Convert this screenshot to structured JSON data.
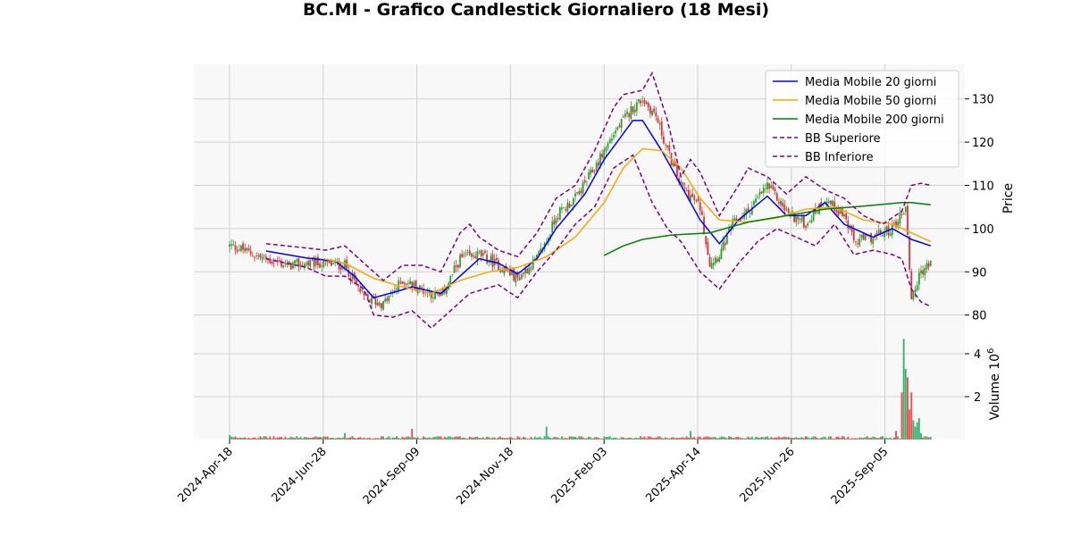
{
  "title": "BC.MI - Grafico Candlestick Giornaliero (18 Mesi)",
  "colors": {
    "up": "#2ca02c",
    "down": "#e0303a",
    "vol_up": "#3cb371",
    "vol_down": "#f05050",
    "ma20": "#0000ff",
    "ma50": "#ffa500",
    "ma200": "#008000",
    "bb": "#800080",
    "panel_bg": "#f8f8f8",
    "grid": "#d0d0d0"
  },
  "chart_data": {
    "type": "candlestick",
    "x_ticks": [
      "2024-Apr-18",
      "2024-Jun-28",
      "2024-Sep-09",
      "2024-Nov-18",
      "2025-Feb-03",
      "2025-Apr-14",
      "2025-Jun-26",
      "2025-Sep-05"
    ],
    "price_panel": {
      "ylabel": "Price",
      "yticks": [
        80,
        90,
        100,
        110,
        120,
        130
      ],
      "ylim": [
        76,
        138
      ],
      "close_anchors": [
        [
          0,
          96
        ],
        [
          5,
          95.5
        ],
        [
          15,
          93.5
        ],
        [
          30,
          91.5
        ],
        [
          45,
          92
        ],
        [
          60,
          91.5
        ],
        [
          70,
          84
        ],
        [
          80,
          82.5
        ],
        [
          90,
          88
        ],
        [
          100,
          86
        ],
        [
          110,
          84
        ],
        [
          120,
          93
        ],
        [
          130,
          94
        ],
        [
          140,
          91.5
        ],
        [
          150,
          88.5
        ],
        [
          160,
          93
        ],
        [
          165,
          97
        ],
        [
          170,
          103
        ],
        [
          180,
          107
        ],
        [
          190,
          114
        ],
        [
          200,
          122
        ],
        [
          210,
          128
        ],
        [
          215,
          130
        ],
        [
          222,
          126
        ],
        [
          228,
          118
        ],
        [
          235,
          110
        ],
        [
          245,
          105
        ],
        [
          250,
          92
        ],
        [
          255,
          94
        ],
        [
          262,
          101
        ],
        [
          270,
          104
        ],
        [
          280,
          110
        ],
        [
          290,
          104
        ],
        [
          300,
          101
        ],
        [
          310,
          107
        ],
        [
          320,
          103
        ],
        [
          325,
          97
        ],
        [
          335,
          98
        ],
        [
          345,
          100
        ],
        [
          352,
          105
        ],
        [
          355,
          84
        ],
        [
          360,
          90
        ],
        [
          365,
          92
        ]
      ]
    },
    "indicators": [
      {
        "name": "Media Mobile 20 giorni",
        "style": "solid",
        "color_key": "ma20",
        "points": [
          [
            19,
            94.8
          ],
          [
            40,
            93.2
          ],
          [
            55,
            92.5
          ],
          [
            65,
            89
          ],
          [
            75,
            84
          ],
          [
            85,
            85.2
          ],
          [
            95,
            86.5
          ],
          [
            110,
            85
          ],
          [
            120,
            89
          ],
          [
            130,
            93
          ],
          [
            140,
            92
          ],
          [
            150,
            89.5
          ],
          [
            160,
            93
          ],
          [
            170,
            100
          ],
          [
            185,
            108
          ],
          [
            195,
            116
          ],
          [
            205,
            122
          ],
          [
            210,
            125
          ],
          [
            215,
            125
          ],
          [
            225,
            118
          ],
          [
            235,
            110
          ],
          [
            245,
            102
          ],
          [
            255,
            96.5
          ],
          [
            265,
            102
          ],
          [
            280,
            107.5
          ],
          [
            290,
            103
          ],
          [
            300,
            103
          ],
          [
            310,
            106
          ],
          [
            320,
            101
          ],
          [
            335,
            98
          ],
          [
            345,
            100
          ],
          [
            355,
            97.5
          ],
          [
            365,
            96
          ]
        ]
      },
      {
        "name": "Media Mobile 50 giorni",
        "style": "solid",
        "color_key": "ma50",
        "points": [
          [
            49,
            93
          ],
          [
            60,
            92
          ],
          [
            75,
            88.5
          ],
          [
            90,
            86.5
          ],
          [
            105,
            85
          ],
          [
            120,
            88
          ],
          [
            135,
            90
          ],
          [
            150,
            91
          ],
          [
            165,
            93.5
          ],
          [
            180,
            98
          ],
          [
            195,
            106
          ],
          [
            205,
            114
          ],
          [
            215,
            118.5
          ],
          [
            225,
            118
          ],
          [
            235,
            114
          ],
          [
            245,
            107
          ],
          [
            255,
            102
          ],
          [
            270,
            101.5
          ],
          [
            285,
            102.5
          ],
          [
            300,
            104.5
          ],
          [
            315,
            105
          ],
          [
            330,
            102
          ],
          [
            345,
            101
          ],
          [
            355,
            99
          ],
          [
            365,
            97
          ]
        ]
      },
      {
        "name": "Media Mobile 200 giorni",
        "style": "solid",
        "color_key": "ma200",
        "points": [
          [
            195,
            93.8
          ],
          [
            205,
            96
          ],
          [
            215,
            97.5
          ],
          [
            230,
            98.5
          ],
          [
            250,
            99
          ],
          [
            270,
            101.5
          ],
          [
            290,
            103
          ],
          [
            310,
            104.5
          ],
          [
            330,
            105.2
          ],
          [
            350,
            106
          ],
          [
            355,
            106
          ],
          [
            365,
            105.5
          ]
        ]
      },
      {
        "name": "BB Superiore",
        "style": "dashed",
        "color_key": "bb",
        "points": [
          [
            19,
            96.5
          ],
          [
            40,
            95.5
          ],
          [
            50,
            95
          ],
          [
            60,
            96
          ],
          [
            70,
            92
          ],
          [
            80,
            88
          ],
          [
            90,
            91.5
          ],
          [
            100,
            91.5
          ],
          [
            110,
            90
          ],
          [
            120,
            99
          ],
          [
            125,
            101
          ],
          [
            130,
            98
          ],
          [
            140,
            95
          ],
          [
            150,
            93.5
          ],
          [
            160,
            99
          ],
          [
            170,
            107
          ],
          [
            180,
            110
          ],
          [
            190,
            118
          ],
          [
            200,
            128
          ],
          [
            205,
            131
          ],
          [
            215,
            132
          ],
          [
            220,
            136
          ],
          [
            228,
            125
          ],
          [
            235,
            112
          ],
          [
            240,
            116
          ],
          [
            245,
            113
          ],
          [
            255,
            103
          ],
          [
            265,
            110
          ],
          [
            270,
            114
          ],
          [
            280,
            112
          ],
          [
            290,
            108
          ],
          [
            300,
            112
          ],
          [
            310,
            109
          ],
          [
            320,
            107
          ],
          [
            330,
            103
          ],
          [
            340,
            101
          ],
          [
            350,
            104
          ],
          [
            355,
            110
          ],
          [
            360,
            110.5
          ],
          [
            365,
            110
          ]
        ]
      },
      {
        "name": "BB Inferiore",
        "style": "dashed",
        "color_key": "bb",
        "points": [
          [
            19,
            93
          ],
          [
            40,
            91
          ],
          [
            50,
            89
          ],
          [
            60,
            89
          ],
          [
            70,
            86
          ],
          [
            75,
            80
          ],
          [
            85,
            79.5
          ],
          [
            95,
            81
          ],
          [
            105,
            77
          ],
          [
            115,
            81
          ],
          [
            125,
            85
          ],
          [
            140,
            87
          ],
          [
            150,
            84
          ],
          [
            160,
            90
          ],
          [
            170,
            95
          ],
          [
            180,
            101
          ],
          [
            190,
            105
          ],
          [
            200,
            114
          ],
          [
            210,
            117
          ],
          [
            220,
            106
          ],
          [
            228,
            100
          ],
          [
            235,
            97
          ],
          [
            245,
            90
          ],
          [
            255,
            86
          ],
          [
            265,
            92
          ],
          [
            275,
            97
          ],
          [
            285,
            100
          ],
          [
            295,
            98
          ],
          [
            305,
            96
          ],
          [
            315,
            101
          ],
          [
            325,
            94
          ],
          [
            335,
            95
          ],
          [
            345,
            94
          ],
          [
            350,
            93
          ],
          [
            355,
            86
          ],
          [
            360,
            83
          ],
          [
            365,
            82
          ]
        ]
      }
    ],
    "volume_panel": {
      "ylabel": "Volume",
      "exponent": "6",
      "yticks": [
        2,
        4
      ],
      "ylim": [
        0,
        5
      ],
      "base_millions": 0.1,
      "spikes": [
        [
          0,
          0.2
        ],
        [
          60,
          0.3
        ],
        [
          95,
          0.5
        ],
        [
          165,
          0.6
        ],
        [
          240,
          0.4
        ],
        [
          347,
          0.4
        ],
        [
          350,
          2.2
        ],
        [
          351,
          4.7
        ],
        [
          352,
          3.3
        ],
        [
          353,
          2.9
        ],
        [
          354,
          1.4
        ],
        [
          355,
          2.2
        ],
        [
          356,
          0.9
        ],
        [
          357,
          0.6
        ],
        [
          358,
          0.8
        ],
        [
          359,
          1.0
        ],
        [
          360,
          0.3
        ]
      ]
    },
    "legend_position": "upper-right",
    "grid": true
  }
}
